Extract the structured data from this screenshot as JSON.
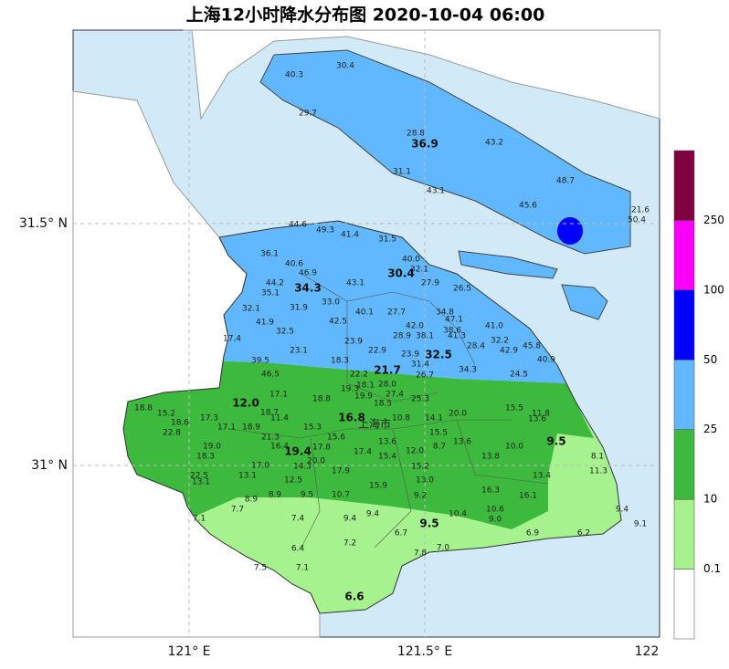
{
  "title": "上海12小时降水分布图 2020-10-04 06:00",
  "lat_labels": [
    "31.5° N",
    "31° N"
  ],
  "lon_labels": [
    "121° E",
    "121.5° E",
    "122"
  ],
  "district_label": "上海市",
  "colorbar": {
    "labels": [
      "0.1",
      "10",
      "25",
      "50",
      "100",
      "250"
    ],
    "colors": [
      "#ffffff",
      "#a6f28f",
      "#3dba3d",
      "#61b8ff",
      "#0000ff",
      "#fa00fa",
      "#800040"
    ]
  },
  "stations": [
    "40.3",
    "30.4",
    "29.7",
    "28.8",
    "36.9",
    "43.2",
    "31.1",
    "43.1",
    "48.7",
    "45.6",
    "21.6",
    "50.4",
    "44.6",
    "49.3",
    "41.4",
    "31.5",
    "36.1",
    "40.6",
    "40.0",
    "32.1",
    "46.9",
    "30.4",
    "44.2",
    "34.3",
    "27.9",
    "26.5",
    "35.1",
    "43.1",
    "33.0",
    "32.1",
    "31.9",
    "40.1",
    "27.7",
    "34.8",
    "47.1",
    "41.9",
    "42.5",
    "42.0",
    "38.6",
    "41.0",
    "32.5",
    "28.9",
    "38.1",
    "41.3",
    "32.2",
    "17.4",
    "23.9",
    "28.4",
    "42.9",
    "45.8",
    "23.1",
    "22.9",
    "23.9",
    "32.5",
    "31.4",
    "40.9",
    "18.3",
    "39.5",
    "21.7",
    "34.3",
    "22.2",
    "26.7",
    "24.5",
    "46.5",
    "19.3",
    "18.1",
    "28.0",
    "17.1",
    "27.4",
    "19.9",
    "25.3",
    "12.0",
    "18.8",
    "18.5",
    "20.0",
    "15.5",
    "11.8",
    "18.8",
    "15.2",
    "18.7",
    "14.1",
    "13.6",
    "16.8",
    "18.6",
    "17.3",
    "11.4",
    "10.8",
    "15.3",
    "17.1",
    "18.9",
    "22.8",
    "15.5",
    "15.6",
    "21.3",
    "13.6",
    "9.5",
    "10.0",
    "19.0",
    "16.4",
    "17.8",
    "17.4",
    "15.4",
    "12.0",
    "8.7",
    "13.8",
    "19.4",
    "18.3",
    "13.6",
    "20.0",
    "8.1",
    "17.0",
    "14.3",
    "15.2",
    "11.3",
    "13.1",
    "17.9",
    "13.4",
    "22.5",
    "13.0",
    "13.1",
    "12.5",
    "15.9",
    "16.3",
    "16.1",
    "9.2",
    "10.7",
    "9.5",
    "8.9",
    "8.9",
    "7.7",
    "10.6",
    "9.4",
    "7.1",
    "7.4",
    "9.4",
    "9.4",
    "9.5",
    "10.4",
    "9.0",
    "9.1",
    "6.7",
    "6.9",
    "6.2",
    "7.2",
    "6.4",
    "7.8",
    "7.0",
    "7.5",
    "7.1",
    "6.6"
  ]
}
